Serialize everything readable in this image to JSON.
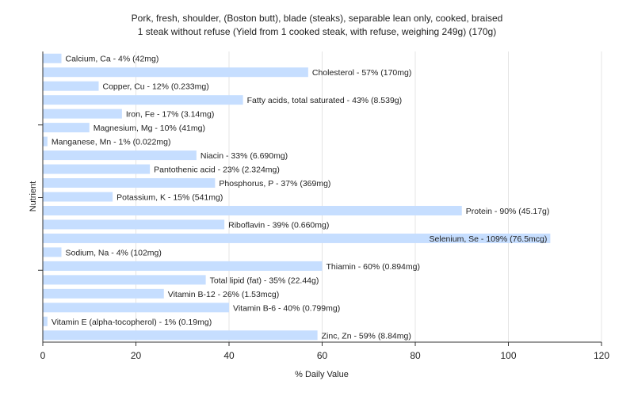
{
  "chart_data": {
    "type": "bar",
    "orientation": "horizontal",
    "title": "Pork, fresh, shoulder, (Boston butt), blade (steaks), separable lean only, cooked, braised",
    "subtitle": "1 steak without refuse (Yield from 1 cooked steak, with refuse, weighing 249g) (170g)",
    "xlabel": "% Daily Value",
    "ylabel": "Nutrient",
    "xlim": [
      0,
      120
    ],
    "xticks": [
      0,
      20,
      40,
      60,
      80,
      100,
      120
    ],
    "grid": true,
    "bar_color": "#c6deff",
    "categories": [
      "Calcium, Ca",
      "Cholesterol",
      "Copper, Cu",
      "Fatty acids, total saturated",
      "Iron, Fe",
      "Magnesium, Mg",
      "Manganese, Mn",
      "Niacin",
      "Pantothenic acid",
      "Phosphorus, P",
      "Potassium, K",
      "Protein",
      "Riboflavin",
      "Selenium, Se",
      "Sodium, Na",
      "Thiamin",
      "Total lipid (fat)",
      "Vitamin B-12",
      "Vitamin B-6",
      "Vitamin E (alpha-tocopherol)",
      "Zinc, Zn"
    ],
    "values": [
      4,
      57,
      12,
      43,
      17,
      10,
      1,
      33,
      23,
      37,
      15,
      90,
      39,
      109,
      4,
      60,
      35,
      26,
      40,
      1,
      59
    ],
    "labels": [
      "Calcium, Ca - 4% (42mg)",
      "Cholesterol - 57% (170mg)",
      "Copper, Cu - 12% (0.233mg)",
      "Fatty acids, total saturated - 43% (8.539g)",
      "Iron, Fe - 17% (3.14mg)",
      "Magnesium, Mg - 10% (41mg)",
      "Manganese, Mn - 1% (0.022mg)",
      "Niacin - 33% (6.690mg)",
      "Pantothenic acid - 23% (2.324mg)",
      "Phosphorus, P - 37% (369mg)",
      "Potassium, K - 15% (541mg)",
      "Protein - 90% (45.17g)",
      "Riboflavin - 39% (0.660mg)",
      "Selenium, Se - 109% (76.5mcg)",
      "Sodium, Na - 4% (102mg)",
      "Thiamin - 60% (0.894mg)",
      "Total lipid (fat) - 35% (22.44g)",
      "Vitamin B-12 - 26% (1.53mcg)",
      "Vitamin B-6 - 40% (0.799mg)",
      "Vitamin E (alpha-tocopherol) - 1% (0.19mg)",
      "Zinc, Zn - 59% (8.84mg)"
    ]
  }
}
